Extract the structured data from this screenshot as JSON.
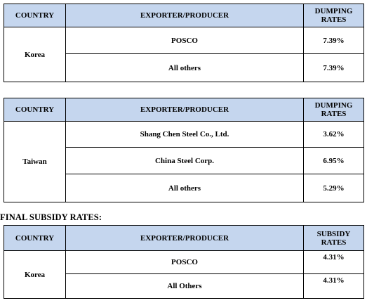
{
  "dumping_table_1": {
    "headers": {
      "country": "COUNTRY",
      "exporter": "EXPORTER/PRODUCER",
      "rate_line1": "DUMPING",
      "rate_line2": "RATES"
    },
    "country": "Korea",
    "rows": [
      {
        "exporter": "POSCO",
        "rate": "7.39%"
      },
      {
        "exporter": "All others",
        "rate": "7.39%"
      }
    ]
  },
  "dumping_table_2": {
    "headers": {
      "country": "COUNTRY",
      "exporter": "EXPORTER/PRODUCER",
      "rate_line1": "DUMPING",
      "rate_line2": "RATES"
    },
    "country": "Taiwan",
    "rows": [
      {
        "exporter": "Shang Chen Steel Co., Ltd.",
        "rate": "3.62%"
      },
      {
        "exporter": "China Steel Corp.",
        "rate": "6.95%"
      },
      {
        "exporter": "All others",
        "rate": "5.29%"
      }
    ]
  },
  "subsidy_heading": "FINAL SUBSIDY RATES:",
  "subsidy_table": {
    "headers": {
      "country": "COUNTRY",
      "exporter": "EXPORTER/PRODUCER",
      "rate_line1": "SUBSIDY",
      "rate_line2": "RATES"
    },
    "country": "Korea",
    "rows": [
      {
        "exporter": "POSCO",
        "rate": "4.31%"
      },
      {
        "exporter": "All Others",
        "rate": "4.31%"
      }
    ]
  },
  "colors": {
    "header_background": "#c5d6ee",
    "border": "#000000"
  }
}
